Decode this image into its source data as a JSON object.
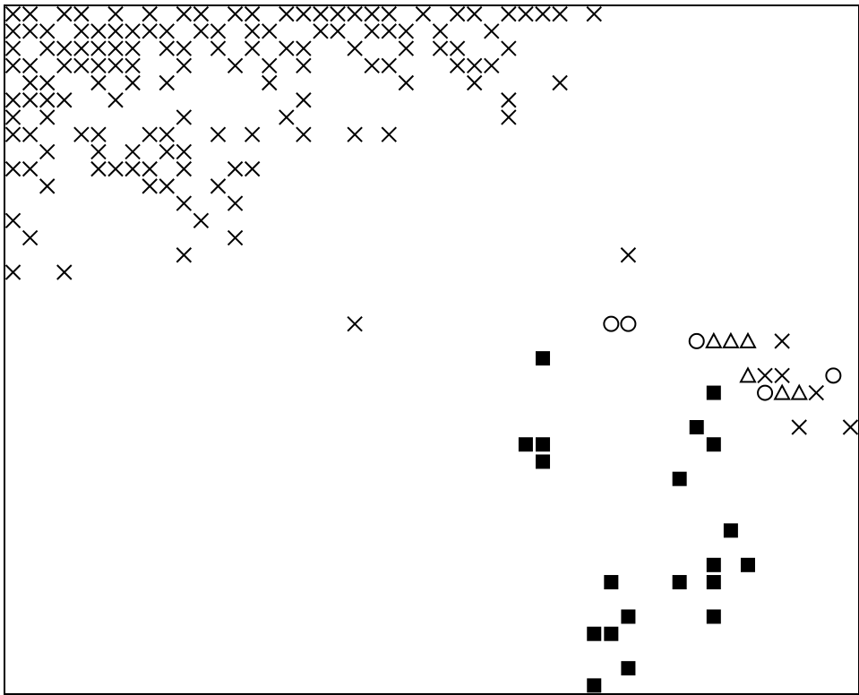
{
  "chart_data": {
    "type": "scatter",
    "title": "",
    "xlabel": "",
    "ylabel": "",
    "grid": false,
    "legend": "none",
    "xlim": [
      0,
      50
    ],
    "ylim": [
      0,
      40
    ],
    "colors": {
      "marker": "#000000",
      "frame": "#000000",
      "background": "#ffffff"
    },
    "series": [
      {
        "marker": "cross",
        "points": [
          [
            0.5,
            39.5
          ],
          [
            1.5,
            39.5
          ],
          [
            3.5,
            39.5
          ],
          [
            4.5,
            39.5
          ],
          [
            6.5,
            39.5
          ],
          [
            8.5,
            39.5
          ],
          [
            10.5,
            39.5
          ],
          [
            11.5,
            39.5
          ],
          [
            13.5,
            39.5
          ],
          [
            14.5,
            39.5
          ],
          [
            16.5,
            39.5
          ],
          [
            17.5,
            39.5
          ],
          [
            18.5,
            39.5
          ],
          [
            19.5,
            39.5
          ],
          [
            20.5,
            39.5
          ],
          [
            21.5,
            39.5
          ],
          [
            22.5,
            39.5
          ],
          [
            24.5,
            39.5
          ],
          [
            26.5,
            39.5
          ],
          [
            27.5,
            39.5
          ],
          [
            29.5,
            39.5
          ],
          [
            30.5,
            39.5
          ],
          [
            31.5,
            39.5
          ],
          [
            32.5,
            39.5
          ],
          [
            34.5,
            39.5
          ],
          [
            0.5,
            38.5
          ],
          [
            1.5,
            38.5
          ],
          [
            2.5,
            38.5
          ],
          [
            4.5,
            38.5
          ],
          [
            5.5,
            38.5
          ],
          [
            6.5,
            38.5
          ],
          [
            7.5,
            38.5
          ],
          [
            8.5,
            38.5
          ],
          [
            9.5,
            38.5
          ],
          [
            11.5,
            38.5
          ],
          [
            12.5,
            38.5
          ],
          [
            14.5,
            38.5
          ],
          [
            15.5,
            38.5
          ],
          [
            18.5,
            38.5
          ],
          [
            19.5,
            38.5
          ],
          [
            21.5,
            38.5
          ],
          [
            22.5,
            38.5
          ],
          [
            23.5,
            38.5
          ],
          [
            25.5,
            38.5
          ],
          [
            28.5,
            38.5
          ],
          [
            0.5,
            37.5
          ],
          [
            2.5,
            37.5
          ],
          [
            3.5,
            37.5
          ],
          [
            4.5,
            37.5
          ],
          [
            5.5,
            37.5
          ],
          [
            6.5,
            37.5
          ],
          [
            7.5,
            37.5
          ],
          [
            9.5,
            37.5
          ],
          [
            10.5,
            37.5
          ],
          [
            12.5,
            37.5
          ],
          [
            14.5,
            37.5
          ],
          [
            16.5,
            37.5
          ],
          [
            17.5,
            37.5
          ],
          [
            20.5,
            37.5
          ],
          [
            23.5,
            37.5
          ],
          [
            25.5,
            37.5
          ],
          [
            26.5,
            37.5
          ],
          [
            29.5,
            37.5
          ],
          [
            0.5,
            36.5
          ],
          [
            1.5,
            36.5
          ],
          [
            3.5,
            36.5
          ],
          [
            4.5,
            36.5
          ],
          [
            5.5,
            36.5
          ],
          [
            6.5,
            36.5
          ],
          [
            7.5,
            36.5
          ],
          [
            10.5,
            36.5
          ],
          [
            13.5,
            36.5
          ],
          [
            15.5,
            36.5
          ],
          [
            17.5,
            36.5
          ],
          [
            21.5,
            36.5
          ],
          [
            22.5,
            36.5
          ],
          [
            26.5,
            36.5
          ],
          [
            27.5,
            36.5
          ],
          [
            28.5,
            36.5
          ],
          [
            1.5,
            35.5
          ],
          [
            2.5,
            35.5
          ],
          [
            5.5,
            35.5
          ],
          [
            7.5,
            35.5
          ],
          [
            9.5,
            35.5
          ],
          [
            15.5,
            35.5
          ],
          [
            23.5,
            35.5
          ],
          [
            27.5,
            35.5
          ],
          [
            32.5,
            35.5
          ],
          [
            0.5,
            34.5
          ],
          [
            1.5,
            34.5
          ],
          [
            2.5,
            34.5
          ],
          [
            3.5,
            34.5
          ],
          [
            6.5,
            34.5
          ],
          [
            17.5,
            34.5
          ],
          [
            29.5,
            34.5
          ],
          [
            0.5,
            33.5
          ],
          [
            2.5,
            33.5
          ],
          [
            10.5,
            33.5
          ],
          [
            16.5,
            33.5
          ],
          [
            29.5,
            33.5
          ],
          [
            0.5,
            32.5
          ],
          [
            1.5,
            32.5
          ],
          [
            4.5,
            32.5
          ],
          [
            5.5,
            32.5
          ],
          [
            8.5,
            32.5
          ],
          [
            9.5,
            32.5
          ],
          [
            12.5,
            32.5
          ],
          [
            14.5,
            32.5
          ],
          [
            17.5,
            32.5
          ],
          [
            20.5,
            32.5
          ],
          [
            22.5,
            32.5
          ],
          [
            2.5,
            31.5
          ],
          [
            5.5,
            31.5
          ],
          [
            7.5,
            31.5
          ],
          [
            9.5,
            31.5
          ],
          [
            10.5,
            31.5
          ],
          [
            0.5,
            30.5
          ],
          [
            1.5,
            30.5
          ],
          [
            5.5,
            30.5
          ],
          [
            6.5,
            30.5
          ],
          [
            7.5,
            30.5
          ],
          [
            8.5,
            30.5
          ],
          [
            10.5,
            30.5
          ],
          [
            13.5,
            30.5
          ],
          [
            14.5,
            30.5
          ],
          [
            2.5,
            29.5
          ],
          [
            8.5,
            29.5
          ],
          [
            9.5,
            29.5
          ],
          [
            12.5,
            29.5
          ],
          [
            10.5,
            28.5
          ],
          [
            13.5,
            28.5
          ],
          [
            11.5,
            27.5
          ],
          [
            0.5,
            27.5
          ],
          [
            1.5,
            26.5
          ],
          [
            13.5,
            26.5
          ],
          [
            10.5,
            25.5
          ],
          [
            36.5,
            25.5
          ],
          [
            0.5,
            24.5
          ],
          [
            3.5,
            24.5
          ],
          [
            20.5,
            21.5
          ],
          [
            45.5,
            20.5
          ],
          [
            44.5,
            18.5
          ],
          [
            45.5,
            18.5
          ],
          [
            47.5,
            17.5
          ],
          [
            46.5,
            15.5
          ],
          [
            49.5,
            15.5
          ]
        ]
      },
      {
        "marker": "circle",
        "points": [
          [
            35.5,
            21.5
          ],
          [
            36.5,
            21.5
          ],
          [
            40.5,
            20.5
          ],
          [
            48.5,
            18.5
          ],
          [
            44.5,
            17.5
          ]
        ]
      },
      {
        "marker": "triangle",
        "points": [
          [
            41.5,
            20.5
          ],
          [
            42.5,
            20.5
          ],
          [
            43.5,
            20.5
          ],
          [
            43.5,
            18.5
          ],
          [
            45.5,
            17.5
          ],
          [
            46.5,
            17.5
          ]
        ]
      },
      {
        "marker": "square",
        "points": [
          [
            31.5,
            19.5
          ],
          [
            41.5,
            17.5
          ],
          [
            40.5,
            15.5
          ],
          [
            30.5,
            14.5
          ],
          [
            31.5,
            14.5
          ],
          [
            41.5,
            14.5
          ],
          [
            31.5,
            13.5
          ],
          [
            39.5,
            12.5
          ],
          [
            42.5,
            9.5
          ],
          [
            41.5,
            7.5
          ],
          [
            43.5,
            7.5
          ],
          [
            35.5,
            6.5
          ],
          [
            39.5,
            6.5
          ],
          [
            41.5,
            6.5
          ],
          [
            36.5,
            4.5
          ],
          [
            41.5,
            4.5
          ],
          [
            34.5,
            3.5
          ],
          [
            35.5,
            3.5
          ],
          [
            36.5,
            1.5
          ],
          [
            34.5,
            0.5
          ]
        ]
      }
    ]
  }
}
